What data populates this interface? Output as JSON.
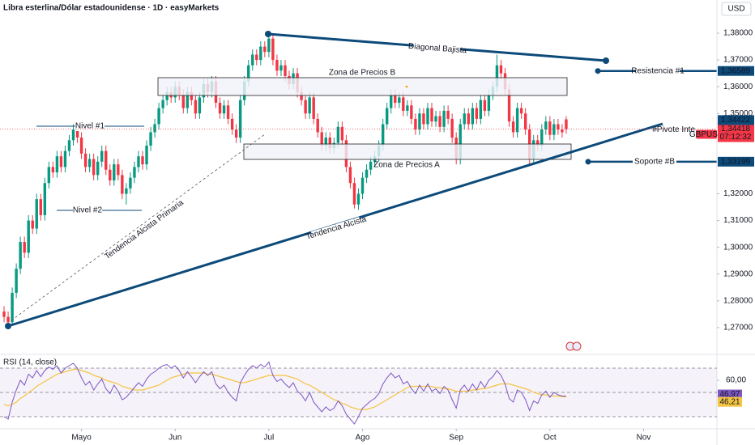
{
  "chart_data": {
    "type": "candlestick",
    "title": "Libra esterlina/Dólar estadounidense · 1D · easyMarkets",
    "currency": "USD",
    "colors": {
      "up": "#089981",
      "down": "#f23645",
      "drawing": "#0c4a7a"
    },
    "xlim": [
      -1,
      175
    ],
    "xticks": [
      {
        "value": 19,
        "label": "Mayo"
      },
      {
        "value": 42,
        "label": "Jun"
      },
      {
        "value": 65,
        "label": "Jul"
      },
      {
        "value": 88,
        "label": "Ago"
      },
      {
        "value": 111,
        "label": "Sep"
      },
      {
        "value": 134,
        "label": "Oct"
      },
      {
        "value": 157,
        "label": "Nov"
      }
    ],
    "ylim": [
      1.2603,
      1.3924
    ],
    "yticks": [
      {
        "value": 1.38,
        "label": "1,38000"
      },
      {
        "value": 1.37,
        "label": "1,37000"
      },
      {
        "value": 1.36,
        "label": "1,36000"
      },
      {
        "value": 1.35,
        "label": "1,35000"
      },
      {
        "value": 1.32,
        "label": "1,32000"
      },
      {
        "value": 1.31,
        "label": "1,31000"
      },
      {
        "value": 1.3,
        "label": "1,30000"
      },
      {
        "value": 1.29,
        "label": "1,29000"
      },
      {
        "value": 1.28,
        "label": "1,28000"
      },
      {
        "value": 1.27,
        "label": "1,27000"
      }
    ],
    "candles": [
      [
        1.276,
        1.278,
        1.272,
        1.274
      ],
      [
        1.274,
        1.276,
        1.2705,
        1.272
      ],
      [
        1.272,
        1.285,
        1.271,
        1.283
      ],
      [
        1.283,
        1.294,
        1.281,
        1.292
      ],
      [
        1.292,
        1.304,
        1.29,
        1.302
      ],
      [
        1.302,
        1.304,
        1.296,
        1.298
      ],
      [
        1.298,
        1.312,
        1.296,
        1.31
      ],
      [
        1.31,
        1.312,
        1.305,
        1.307
      ],
      [
        1.307,
        1.32,
        1.305,
        1.318
      ],
      [
        1.318,
        1.32,
        1.31,
        1.312
      ],
      [
        1.312,
        1.326,
        1.31,
        1.324
      ],
      [
        1.324,
        1.332,
        1.322,
        1.33
      ],
      [
        1.33,
        1.332,
        1.326,
        1.328
      ],
      [
        1.328,
        1.336,
        1.326,
        1.334
      ],
      [
        1.334,
        1.336,
        1.328,
        1.33
      ],
      [
        1.33,
        1.338,
        1.328,
        1.336
      ],
      [
        1.336,
        1.342,
        1.334,
        1.34
      ],
      [
        1.34,
        1.346,
        1.338,
        1.344
      ],
      [
        1.344,
        1.346,
        1.339,
        1.341
      ],
      [
        1.341,
        1.343,
        1.333,
        1.335
      ],
      [
        1.335,
        1.337,
        1.328,
        1.33
      ],
      [
        1.33,
        1.335,
        1.328,
        1.333
      ],
      [
        1.333,
        1.335,
        1.325,
        1.327
      ],
      [
        1.327,
        1.334,
        1.325,
        1.332
      ],
      [
        1.332,
        1.338,
        1.33,
        1.336
      ],
      [
        1.336,
        1.338,
        1.327,
        1.329
      ],
      [
        1.329,
        1.331,
        1.323,
        1.325
      ],
      [
        1.325,
        1.333,
        1.323,
        1.331
      ],
      [
        1.331,
        1.333,
        1.325,
        1.327
      ],
      [
        1.327,
        1.329,
        1.318,
        1.32
      ],
      [
        1.32,
        1.324,
        1.316,
        1.322
      ],
      [
        1.322,
        1.328,
        1.32,
        1.326
      ],
      [
        1.326,
        1.332,
        1.324,
        1.33
      ],
      [
        1.33,
        1.336,
        1.328,
        1.334
      ],
      [
        1.334,
        1.336,
        1.329,
        1.331
      ],
      [
        1.331,
        1.34,
        1.329,
        1.338
      ],
      [
        1.338,
        1.345,
        1.336,
        1.343
      ],
      [
        1.343,
        1.348,
        1.341,
        1.346
      ],
      [
        1.346,
        1.354,
        1.344,
        1.352
      ],
      [
        1.352,
        1.357,
        1.35,
        1.355
      ],
      [
        1.355,
        1.36,
        1.353,
        1.358
      ],
      [
        1.358,
        1.36,
        1.354,
        1.356
      ],
      [
        1.356,
        1.362,
        1.354,
        1.36
      ],
      [
        1.36,
        1.362,
        1.355,
        1.357
      ],
      [
        1.357,
        1.359,
        1.35,
        1.352
      ],
      [
        1.352,
        1.36,
        1.35,
        1.358
      ],
      [
        1.358,
        1.36,
        1.353,
        1.355
      ],
      [
        1.355,
        1.357,
        1.348,
        1.35
      ],
      [
        1.35,
        1.358,
        1.348,
        1.356
      ],
      [
        1.356,
        1.363,
        1.354,
        1.361
      ],
      [
        1.361,
        1.363,
        1.356,
        1.358
      ],
      [
        1.358,
        1.364,
        1.356,
        1.362
      ],
      [
        1.362,
        1.364,
        1.352,
        1.354
      ],
      [
        1.354,
        1.356,
        1.348,
        1.35
      ],
      [
        1.35,
        1.355,
        1.348,
        1.353
      ],
      [
        1.353,
        1.355,
        1.346,
        1.348
      ],
      [
        1.348,
        1.35,
        1.342,
        1.344
      ],
      [
        1.344,
        1.346,
        1.339,
        1.341
      ],
      [
        1.341,
        1.357,
        1.339,
        1.355
      ],
      [
        1.355,
        1.364,
        1.353,
        1.362
      ],
      [
        1.362,
        1.37,
        1.36,
        1.368
      ],
      [
        1.368,
        1.374,
        1.366,
        1.372
      ],
      [
        1.372,
        1.374,
        1.368,
        1.37
      ],
      [
        1.37,
        1.377,
        1.368,
        1.375
      ],
      [
        1.375,
        1.377,
        1.371,
        1.373
      ],
      [
        1.373,
        1.38,
        1.371,
        1.378
      ],
      [
        1.378,
        1.38,
        1.368,
        1.37
      ],
      [
        1.37,
        1.372,
        1.364,
        1.366
      ],
      [
        1.366,
        1.37,
        1.364,
        1.368
      ],
      [
        1.368,
        1.37,
        1.362,
        1.364
      ],
      [
        1.364,
        1.366,
        1.359,
        1.361
      ],
      [
        1.361,
        1.367,
        1.359,
        1.365
      ],
      [
        1.365,
        1.367,
        1.356,
        1.358
      ],
      [
        1.358,
        1.36,
        1.353,
        1.355
      ],
      [
        1.355,
        1.357,
        1.348,
        1.35
      ],
      [
        1.35,
        1.358,
        1.348,
        1.356
      ],
      [
        1.356,
        1.358,
        1.346,
        1.348
      ],
      [
        1.348,
        1.35,
        1.341,
        1.343
      ],
      [
        1.343,
        1.345,
        1.336,
        1.338
      ],
      [
        1.338,
        1.343,
        1.336,
        1.341
      ],
      [
        1.341,
        1.343,
        1.335,
        1.337
      ],
      [
        1.337,
        1.341,
        1.335,
        1.339
      ],
      [
        1.339,
        1.347,
        1.337,
        1.345
      ],
      [
        1.345,
        1.347,
        1.338,
        1.34
      ],
      [
        1.34,
        1.342,
        1.328,
        1.33
      ],
      [
        1.33,
        1.332,
        1.322,
        1.324
      ],
      [
        1.324,
        1.326,
        1.3145,
        1.316
      ],
      [
        1.316,
        1.322,
        1.314,
        1.32
      ],
      [
        1.32,
        1.328,
        1.318,
        1.326
      ],
      [
        1.326,
        1.331,
        1.324,
        1.329
      ],
      [
        1.329,
        1.334,
        1.327,
        1.332
      ],
      [
        1.332,
        1.336,
        1.33,
        1.334
      ],
      [
        1.334,
        1.34,
        1.332,
        1.338
      ],
      [
        1.338,
        1.348,
        1.336,
        1.346
      ],
      [
        1.346,
        1.354,
        1.344,
        1.352
      ],
      [
        1.352,
        1.359,
        1.35,
        1.357
      ],
      [
        1.357,
        1.359,
        1.352,
        1.354
      ],
      [
        1.354,
        1.358,
        1.352,
        1.356
      ],
      [
        1.356,
        1.358,
        1.349,
        1.351
      ],
      [
        1.351,
        1.355,
        1.349,
        1.353
      ],
      [
        1.353,
        1.355,
        1.346,
        1.348
      ],
      [
        1.348,
        1.35,
        1.342,
        1.344
      ],
      [
        1.344,
        1.352,
        1.342,
        1.35
      ],
      [
        1.35,
        1.352,
        1.344,
        1.346
      ],
      [
        1.346,
        1.354,
        1.344,
        1.352
      ],
      [
        1.352,
        1.354,
        1.345,
        1.347
      ],
      [
        1.347,
        1.351,
        1.345,
        1.349
      ],
      [
        1.349,
        1.351,
        1.343,
        1.345
      ],
      [
        1.345,
        1.353,
        1.343,
        1.351
      ],
      [
        1.351,
        1.353,
        1.346,
        1.348
      ],
      [
        1.348,
        1.35,
        1.339,
        1.341
      ],
      [
        1.341,
        1.343,
        1.331,
        1.333
      ],
      [
        1.333,
        1.348,
        1.331,
        1.346
      ],
      [
        1.346,
        1.352,
        1.344,
        1.35
      ],
      [
        1.35,
        1.352,
        1.344,
        1.346
      ],
      [
        1.346,
        1.354,
        1.344,
        1.352
      ],
      [
        1.352,
        1.354,
        1.346,
        1.348
      ],
      [
        1.348,
        1.357,
        1.346,
        1.355
      ],
      [
        1.355,
        1.357,
        1.349,
        1.351
      ],
      [
        1.351,
        1.359,
        1.349,
        1.357
      ],
      [
        1.357,
        1.362,
        1.355,
        1.36
      ],
      [
        1.36,
        1.372,
        1.358,
        1.368
      ],
      [
        1.368,
        1.37,
        1.363,
        1.365
      ],
      [
        1.365,
        1.367,
        1.357,
        1.359
      ],
      [
        1.359,
        1.361,
        1.345,
        1.347
      ],
      [
        1.347,
        1.349,
        1.341,
        1.343
      ],
      [
        1.343,
        1.354,
        1.341,
        1.352
      ],
      [
        1.352,
        1.354,
        1.348,
        1.35
      ],
      [
        1.35,
        1.352,
        1.342,
        1.344
      ],
      [
        1.344,
        1.346,
        1.331,
        1.333
      ],
      [
        1.333,
        1.342,
        1.331,
        1.34
      ],
      [
        1.34,
        1.342,
        1.336,
        1.338
      ],
      [
        1.338,
        1.346,
        1.336,
        1.344
      ],
      [
        1.344,
        1.349,
        1.342,
        1.347
      ],
      [
        1.347,
        1.349,
        1.34,
        1.342
      ],
      [
        1.342,
        1.348,
        1.34,
        1.346
      ],
      [
        1.346,
        1.348,
        1.342,
        1.344
      ],
      [
        1.344,
        1.346,
        1.341,
        1.343
      ],
      [
        1.3478,
        1.349,
        1.3425,
        1.34418
      ]
    ],
    "levels": [
      {
        "name": "Resistencia #1",
        "value": 1.36589,
        "label": "1,36589"
      },
      {
        "name": "#Pivote Inte",
        "value": 1.34422,
        "label": "1,34422"
      },
      {
        "name": "Soporte #B",
        "value": 1.33199,
        "label": "1,33199"
      }
    ],
    "last_price": {
      "value": 1.34418,
      "label": "1,34418",
      "symbol": "GBPUSD",
      "countdown": "07:12:32"
    },
    "annotations": {
      "diagonal": "Diagonal Bajista",
      "zone_b": "Zona de Precios B",
      "zone_a": "Zona de Precios A",
      "level_1": "Nivel #1",
      "level_2": "Nivel #2",
      "primary_trend": "Tendencia Alcista Primaria",
      "trend": "Tendencia Alcista"
    },
    "rsi": {
      "title": "RSI (14, close)",
      "ylim": [
        20,
        80
      ],
      "yticks": [
        {
          "value": 60,
          "label": "60,00"
        }
      ],
      "levels": [
        70,
        50,
        30
      ],
      "series": [
        {
          "color": "#7e57c2",
          "last": {
            "value": 46.97,
            "label": "46,97"
          },
          "values": [
            30,
            28,
            42,
            52,
            60,
            56,
            65,
            62,
            68,
            63,
            68,
            71,
            69,
            72,
            66,
            70,
            72,
            74,
            70,
            62,
            56,
            59,
            52,
            57,
            61,
            53,
            49,
            56,
            51,
            44,
            46,
            50,
            54,
            58,
            55,
            61,
            65,
            67,
            70,
            72,
            73,
            70,
            72,
            68,
            62,
            67,
            63,
            58,
            63,
            67,
            64,
            67,
            57,
            53,
            56,
            50,
            46,
            43,
            58,
            64,
            69,
            72,
            70,
            73,
            71,
            75,
            64,
            59,
            61,
            57,
            54,
            58,
            51,
            48,
            43,
            50,
            42,
            38,
            34,
            38,
            35,
            37,
            43,
            39,
            32,
            28,
            24,
            30,
            37,
            40,
            43,
            45,
            49,
            57,
            62,
            66,
            62,
            64,
            57,
            59,
            53,
            49,
            56,
            51,
            57,
            51,
            53,
            49,
            55,
            52,
            44,
            37,
            52,
            56,
            51,
            57,
            52,
            59,
            54,
            60,
            63,
            68,
            64,
            57,
            45,
            42,
            52,
            50,
            44,
            35,
            43,
            41,
            48,
            51,
            46,
            50,
            48,
            47,
            46.97
          ]
        },
        {
          "color": "#f5c542",
          "last": {
            "value": 46.21,
            "label": "46,21"
          },
          "values": [
            40,
            39,
            40,
            42,
            45,
            47,
            50,
            52,
            55,
            57,
            59,
            61,
            63,
            65,
            66,
            67,
            68,
            69,
            69,
            68,
            67,
            66,
            64,
            63,
            62,
            60,
            59,
            58,
            57,
            55,
            54,
            53,
            52,
            52,
            52,
            53,
            54,
            55,
            56,
            58,
            60,
            62,
            63,
            64,
            65,
            66,
            66,
            66,
            66,
            66,
            65,
            65,
            64,
            63,
            62,
            61,
            60,
            59,
            58,
            58,
            59,
            60,
            61,
            62,
            63,
            64,
            64,
            64,
            64,
            64,
            63,
            62,
            61,
            59,
            57,
            56,
            54,
            52,
            50,
            48,
            46,
            44,
            43,
            41,
            40,
            38,
            37,
            36,
            36,
            36,
            37,
            38,
            40,
            42,
            44,
            46,
            48,
            50,
            52,
            54,
            55,
            55,
            55,
            55,
            55,
            55,
            54,
            54,
            53,
            53,
            52,
            51,
            51,
            51,
            51,
            52,
            52,
            53,
            53,
            54,
            55,
            56,
            57,
            57,
            57,
            56,
            55,
            54,
            53,
            52,
            50,
            49,
            48,
            48,
            47,
            47,
            47,
            46.5,
            46.21
          ]
        }
      ]
    }
  }
}
